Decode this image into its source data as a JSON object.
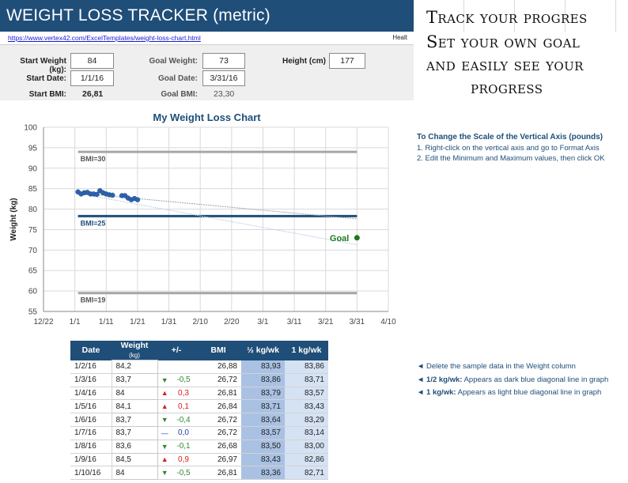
{
  "header": {
    "title": "WEIGHT LOSS TRACKER (metric)",
    "url": "https://www.vertex42.com/ExcelTemplates/weight-loss-chart.html",
    "truncated_label": "Healt"
  },
  "settings": {
    "start_weight_label": "Start Weight (kg):",
    "start_weight": "84",
    "goal_weight_label": "Goal Weight:",
    "goal_weight": "73",
    "height_label": "Height (cm)",
    "height": "177",
    "start_date_label": "Start Date:",
    "start_date": "1/1/16",
    "goal_date_label": "Goal Date:",
    "goal_date": "3/31/16",
    "start_bmi_label": "Start BMI:",
    "start_bmi": "26,81",
    "goal_bmi_label": "Goal BMI:",
    "goal_bmi": "23,30"
  },
  "promo": {
    "line1": "Track your progres",
    "line2": "Set your own goal",
    "line3": "and easily see your",
    "line4": "progress"
  },
  "notes": {
    "scale_title": "To Change the Scale of the Vertical Axis (pounds)",
    "scale_step1": "1. Right-click on the vertical axis and go to Format Axis",
    "scale_step2": "2. Edit the Minimum and Maximum values, then click OK",
    "tip1": "◄ Delete the sample data in the Weight column",
    "tip2_bold": "◄ 1/2 kg/wk:",
    "tip2_rest": " Appears as dark blue diagonal line in graph",
    "tip3_bold": "◄ 1 kg/wk:",
    "tip3_rest": " Appears as light blue diagonal line in graph"
  },
  "table": {
    "headers": {
      "date": "Date",
      "weight": "Weight",
      "weight_unit": "(kg)",
      "diff": "+/-",
      "bmi": "BMI",
      "half": "½ kg/wk",
      "one": "1 kg/wk"
    },
    "rows": [
      {
        "date": "1/2/16",
        "weight": "84,2",
        "arrow": "",
        "diff": "",
        "bmi": "26,88",
        "half": "83,93",
        "one": "83,86"
      },
      {
        "date": "1/3/16",
        "weight": "83,7",
        "arrow": "▼",
        "diff": "-0,5",
        "bmi": "26,72",
        "half": "83,86",
        "one": "83,71"
      },
      {
        "date": "1/4/16",
        "weight": "84",
        "arrow": "▲",
        "diff": "0,3",
        "bmi": "26,81",
        "half": "83,79",
        "one": "83,57"
      },
      {
        "date": "1/5/16",
        "weight": "84,1",
        "arrow": "▲",
        "diff": "0,1",
        "bmi": "26,84",
        "half": "83,71",
        "one": "83,43"
      },
      {
        "date": "1/6/16",
        "weight": "83,7",
        "arrow": "▼",
        "diff": "-0,4",
        "bmi": "26,72",
        "half": "83,64",
        "one": "83,29"
      },
      {
        "date": "1/7/16",
        "weight": "83,7",
        "arrow": "—",
        "diff": "0,0",
        "bmi": "26,72",
        "half": "83,57",
        "one": "83,14"
      },
      {
        "date": "1/8/16",
        "weight": "83,6",
        "arrow": "▼",
        "diff": "-0,1",
        "bmi": "26,68",
        "half": "83,50",
        "one": "83,00"
      },
      {
        "date": "1/9/16",
        "weight": "84,5",
        "arrow": "▲",
        "diff": "0,9",
        "bmi": "26,97",
        "half": "83,43",
        "one": "82,86"
      },
      {
        "date": "1/10/16",
        "weight": "84",
        "arrow": "▼",
        "diff": "-0,5",
        "bmi": "26,81",
        "half": "83,36",
        "one": "82,71"
      }
    ]
  },
  "colors": {
    "header_blue": "#1f4e79",
    "bmi_line_gray": "#a6a6a6",
    "bmi25_line": "#1f4e79",
    "goal_green": "#1e7a1e",
    "down_green": "#2e8b2e",
    "up_red": "#d62020"
  },
  "chart_data": {
    "type": "scatter",
    "title": "My Weight Loss Chart",
    "ylabel": "Weight (kg)",
    "ylim": [
      55,
      100
    ],
    "yticks": [
      55,
      60,
      65,
      70,
      75,
      80,
      85,
      90,
      95,
      100
    ],
    "x_tick_labels": [
      "12/22",
      "1/1",
      "1/11",
      "1/21",
      "1/31",
      "2/10",
      "2/20",
      "3/1",
      "3/11",
      "3/21",
      "3/31",
      "4/10"
    ],
    "xlim_days": [
      -10,
      100
    ],
    "bmi_lines": [
      {
        "label": "BMI=30",
        "value": 94
      },
      {
        "label": "BMI=25",
        "value": 78.3
      },
      {
        "label": "BMI=19",
        "value": 59.5
      }
    ],
    "series": [
      {
        "day": [
          1,
          2,
          3,
          4,
          5,
          6,
          7,
          8,
          9,
          10,
          11,
          12,
          15,
          16,
          17,
          18,
          19,
          20
        ],
        "weight": [
          84.2,
          83.7,
          84,
          84.1,
          83.7,
          83.7,
          83.6,
          84.5,
          84,
          83.7,
          83.5,
          83.4,
          83.3,
          83.3,
          82.7,
          82.3,
          82.6,
          82.3
        ]
      }
    ],
    "goal": {
      "label": "Goal",
      "day": 90,
      "weight": 73
    },
    "trend_half_kg": {
      "start": [
        1,
        83.93
      ],
      "end": [
        90,
        77.6
      ]
    },
    "trend_one_kg": {
      "start": [
        1,
        83.86
      ],
      "end": [
        90,
        71.3
      ]
    },
    "grid": true
  }
}
